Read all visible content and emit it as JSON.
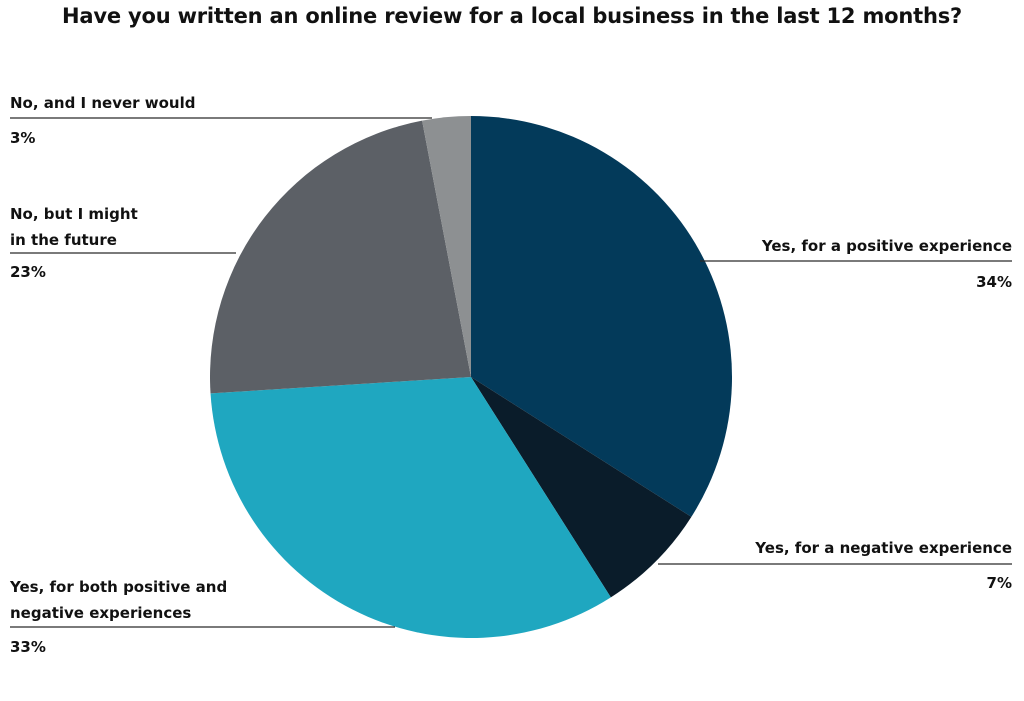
{
  "chart_data": {
    "type": "pie",
    "title": "Have you written an online review for a local business in the last 12 months?",
    "slices": [
      {
        "label": "Yes, for a positive experience",
        "value": 34,
        "value_label": "34%",
        "color": "#033a5a"
      },
      {
        "label": "Yes, for a negative experience",
        "value": 7,
        "value_label": "7%",
        "color": "#0a1c2a"
      },
      {
        "label": "Yes, for both positive and negative experiences",
        "value": 33,
        "value_label": "33%",
        "color": "#1fa7c0"
      },
      {
        "label": "No, but I might in the future",
        "value": 23,
        "value_label": "23%",
        "color": "#5c6066"
      },
      {
        "label": "No, and I never would",
        "value": 3,
        "value_label": "3%",
        "color": "#8d9092"
      }
    ],
    "start_angle": "12 o'clock",
    "direction": "clockwise",
    "legend": "none",
    "label_style": "callout lines with label and percentage"
  }
}
